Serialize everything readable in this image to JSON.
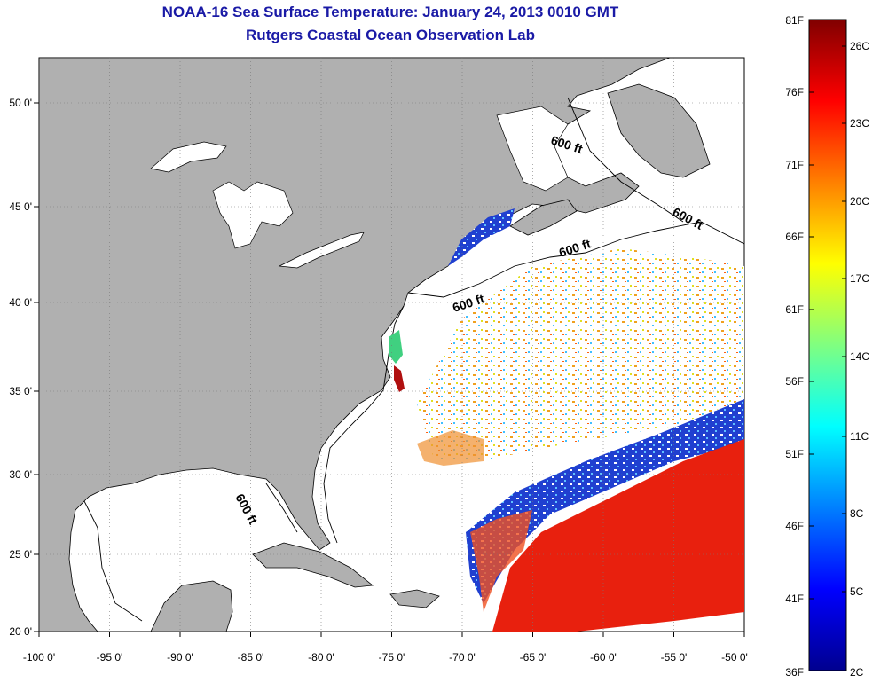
{
  "title": "NOAA-16 Sea Surface Temperature:  January 24, 2013 0010 GMT",
  "subtitle": "Rutgers Coastal Ocean Observation Lab",
  "map": {
    "lon_range": [
      -100,
      -50
    ],
    "lat_range": [
      20,
      52.5
    ],
    "lon_ticks": [
      "-100 0'",
      "-95 0'",
      "-90 0'",
      "-85 0'",
      "-80 0'",
      "-75 0'",
      "-70 0'",
      "-65 0'",
      "-60 0'",
      "-55 0'",
      "-50 0'"
    ],
    "lat_ticks": [
      {
        "lat": 50,
        "label": "50 0'"
      },
      {
        "lat": 45,
        "label": "45 0'"
      },
      {
        "lat": 40,
        "label": "40 0'"
      },
      {
        "lat": 35,
        "label": "35 0'"
      },
      {
        "lat": 30,
        "label": "30 0'"
      },
      {
        "lat": 25,
        "label": "25 0'"
      },
      {
        "lat": 20,
        "label": "20 0'"
      }
    ],
    "contour_labels": [
      "600 ft",
      "600 ft",
      "600 ft",
      "600 ft",
      "600 ft"
    ],
    "colors": {
      "land": "#b0b0b0",
      "water": "#ffffff",
      "cloud": "#ffffff",
      "warm_sst": "#e8200e",
      "cold_shelf": "#2030e0"
    }
  },
  "colorbar": {
    "fahrenheit_labels": [
      "81F",
      "76F",
      "71F",
      "66F",
      "61F",
      "56F",
      "51F",
      "46F",
      "41F",
      "36F"
    ],
    "celsius_labels": [
      "26C",
      "23C",
      "20C",
      "17C",
      "14C",
      "11C",
      "8C",
      "5C",
      "2C"
    ],
    "range_c": [
      2,
      27.2
    ]
  }
}
